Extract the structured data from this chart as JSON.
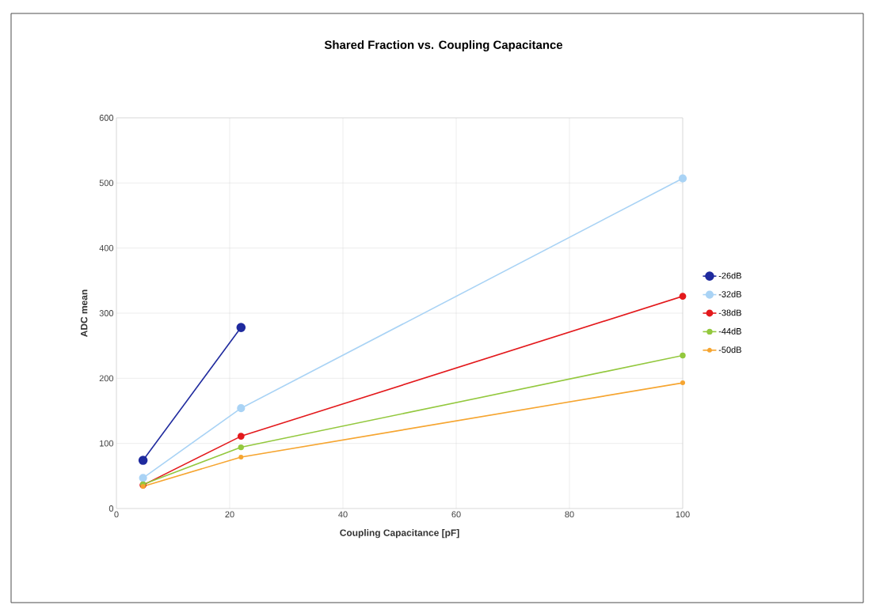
{
  "chart_data": {
    "type": "line",
    "title": "Shared Fraction vs. Coupling Capacitance",
    "xlabel": "Coupling Capacitance [pF]",
    "ylabel": "ADC mean",
    "xlim": [
      0,
      100
    ],
    "xticks": [
      0,
      20,
      40,
      60,
      80,
      100
    ],
    "ylim": [
      0,
      600
    ],
    "yticks": [
      0,
      100,
      200,
      300,
      400,
      500,
      600
    ],
    "grid": true,
    "legend": "right",
    "marker": "circle",
    "line_style": "solid",
    "series": [
      {
        "name": "-26dB",
        "color": "#1f2a9e",
        "x": [
          4.7,
          22
        ],
        "values": [
          74,
          278
        ]
      },
      {
        "name": "-32dB",
        "color": "#a9d3f5",
        "x": [
          4.7,
          22,
          100
        ],
        "values": [
          47,
          154,
          507
        ]
      },
      {
        "name": "-38dB",
        "color": "#e3191c",
        "x": [
          4.7,
          22,
          100
        ],
        "values": [
          36,
          111,
          326
        ]
      },
      {
        "name": "-44dB",
        "color": "#93c83e",
        "x": [
          4.7,
          22,
          100
        ],
        "values": [
          37,
          94,
          235
        ]
      },
      {
        "name": "-50dB",
        "color": "#f6a530",
        "x": [
          4.7,
          22,
          100
        ],
        "values": [
          34,
          79,
          193
        ]
      }
    ]
  }
}
